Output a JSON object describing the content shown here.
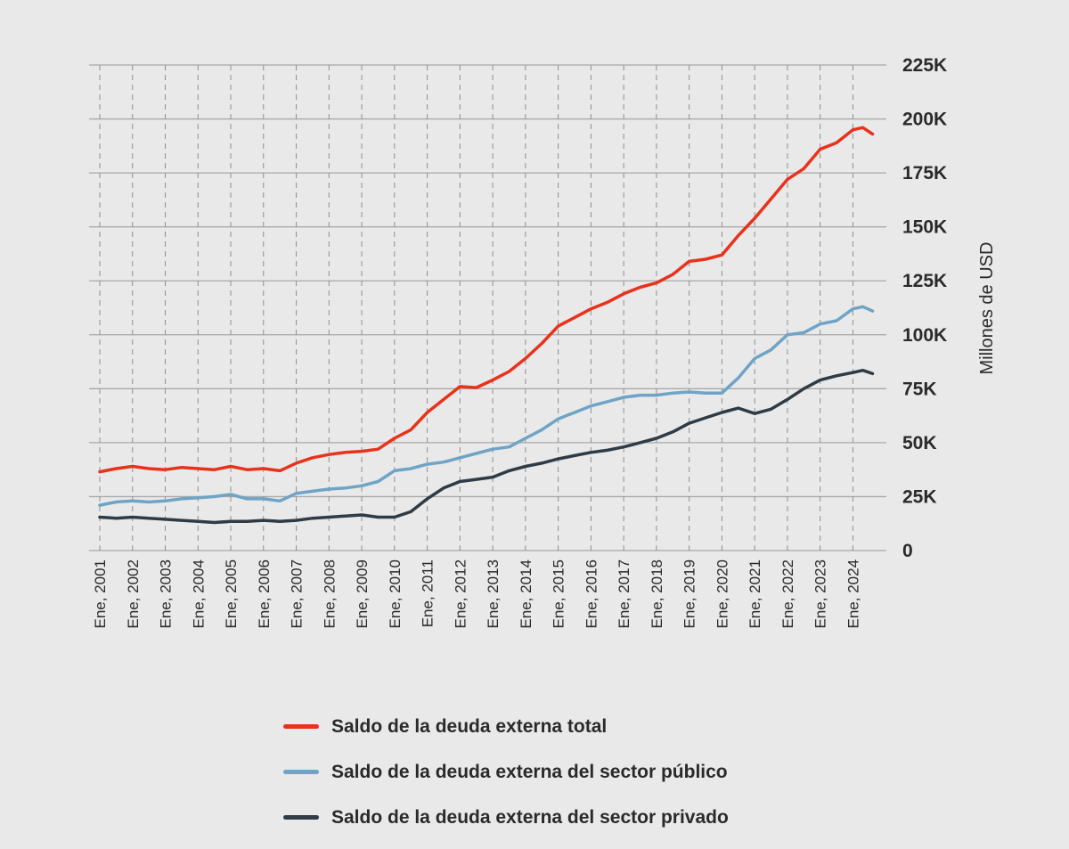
{
  "chart_data": {
    "type": "line",
    "ylabel": "Millones de USD",
    "xlabel": "",
    "ylim": [
      0,
      225000
    ],
    "y_ticks": [
      {
        "value": 0,
        "label": "0"
      },
      {
        "value": 25000,
        "label": "25K"
      },
      {
        "value": 50000,
        "label": "50K"
      },
      {
        "value": 75000,
        "label": "75K"
      },
      {
        "value": 100000,
        "label": "100K"
      },
      {
        "value": 125000,
        "label": "125K"
      },
      {
        "value": 150000,
        "label": "150K"
      },
      {
        "value": 175000,
        "label": "175K"
      },
      {
        "value": 200000,
        "label": "200K"
      },
      {
        "value": 225000,
        "label": "225K"
      }
    ],
    "x_range": [
      2001.0,
      2024.75
    ],
    "x_ticks": [
      {
        "value": 2001,
        "label": "Ene, 2001"
      },
      {
        "value": 2002,
        "label": "Ene, 2002"
      },
      {
        "value": 2003,
        "label": "Ene, 2003"
      },
      {
        "value": 2004,
        "label": "Ene, 2004"
      },
      {
        "value": 2005,
        "label": "Ene, 2005"
      },
      {
        "value": 2006,
        "label": "Ene, 2006"
      },
      {
        "value": 2007,
        "label": "Ene, 2007"
      },
      {
        "value": 2008,
        "label": "Ene, 2008"
      },
      {
        "value": 2009,
        "label": "Ene, 2009"
      },
      {
        "value": 2010,
        "label": "Ene, 2010"
      },
      {
        "value": 2011,
        "label": "Ene, 2011"
      },
      {
        "value": 2012,
        "label": "Ene, 2012"
      },
      {
        "value": 2013,
        "label": "Ene, 2013"
      },
      {
        "value": 2014,
        "label": "Ene, 2014"
      },
      {
        "value": 2015,
        "label": "Ene, 2015"
      },
      {
        "value": 2016,
        "label": "Ene, 2016"
      },
      {
        "value": 2017,
        "label": "Ene, 2017"
      },
      {
        "value": 2018,
        "label": "Ene, 2018"
      },
      {
        "value": 2019,
        "label": "Ene, 2019"
      },
      {
        "value": 2020,
        "label": "Ene, 2020"
      },
      {
        "value": 2021,
        "label": "Ene, 2021"
      },
      {
        "value": 2022,
        "label": "Ene, 2022"
      },
      {
        "value": 2023,
        "label": "Ene, 2023"
      },
      {
        "value": 2024,
        "label": "Ene, 2024"
      }
    ],
    "grid": {
      "horizontal": true,
      "vertical": "dashed"
    },
    "y_axis_position": "right",
    "legend_position": "bottom",
    "series": [
      {
        "name": "Saldo de la deuda externa total",
        "color": "#e8321b",
        "points": [
          [
            2001.0,
            36500
          ],
          [
            2001.5,
            38000
          ],
          [
            2002.0,
            39000
          ],
          [
            2002.5,
            38000
          ],
          [
            2003.0,
            37500
          ],
          [
            2003.5,
            38500
          ],
          [
            2004.0,
            38000
          ],
          [
            2004.5,
            37500
          ],
          [
            2005.0,
            39000
          ],
          [
            2005.5,
            37500
          ],
          [
            2006.0,
            38000
          ],
          [
            2006.5,
            37000
          ],
          [
            2007.0,
            40500
          ],
          [
            2007.5,
            43000
          ],
          [
            2008.0,
            44500
          ],
          [
            2008.5,
            45500
          ],
          [
            2009.0,
            46000
          ],
          [
            2009.5,
            47000
          ],
          [
            2010.0,
            52000
          ],
          [
            2010.5,
            56000
          ],
          [
            2011.0,
            64000
          ],
          [
            2011.5,
            70000
          ],
          [
            2012.0,
            76000
          ],
          [
            2012.5,
            75500
          ],
          [
            2013.0,
            79000
          ],
          [
            2013.5,
            83000
          ],
          [
            2014.0,
            89000
          ],
          [
            2014.5,
            96000
          ],
          [
            2015.0,
            104000
          ],
          [
            2015.5,
            108000
          ],
          [
            2016.0,
            112000
          ],
          [
            2016.5,
            115000
          ],
          [
            2017.0,
            119000
          ],
          [
            2017.5,
            122000
          ],
          [
            2018.0,
            124000
          ],
          [
            2018.5,
            128000
          ],
          [
            2019.0,
            134000
          ],
          [
            2019.5,
            135000
          ],
          [
            2020.0,
            137000
          ],
          [
            2020.5,
            146000
          ],
          [
            2021.0,
            154000
          ],
          [
            2021.5,
            163000
          ],
          [
            2022.0,
            172000
          ],
          [
            2022.5,
            177000
          ],
          [
            2023.0,
            186000
          ],
          [
            2023.5,
            189000
          ],
          [
            2024.0,
            195000
          ],
          [
            2024.3,
            196000
          ],
          [
            2024.6,
            193000
          ]
        ]
      },
      {
        "name": "Saldo de la deuda externa del sector público",
        "color": "#6fa4c6",
        "points": [
          [
            2001.0,
            21000
          ],
          [
            2001.5,
            22500
          ],
          [
            2002.0,
            23000
          ],
          [
            2002.5,
            22500
          ],
          [
            2003.0,
            23000
          ],
          [
            2003.5,
            24000
          ],
          [
            2004.0,
            24500
          ],
          [
            2004.5,
            25000
          ],
          [
            2005.0,
            26000
          ],
          [
            2005.5,
            24000
          ],
          [
            2006.0,
            24000
          ],
          [
            2006.5,
            23000
          ],
          [
            2007.0,
            26500
          ],
          [
            2007.5,
            27500
          ],
          [
            2008.0,
            28500
          ],
          [
            2008.5,
            29000
          ],
          [
            2009.0,
            30000
          ],
          [
            2009.5,
            32000
          ],
          [
            2010.0,
            37000
          ],
          [
            2010.5,
            38000
          ],
          [
            2011.0,
            40000
          ],
          [
            2011.5,
            41000
          ],
          [
            2012.0,
            43000
          ],
          [
            2012.5,
            45000
          ],
          [
            2013.0,
            47000
          ],
          [
            2013.5,
            48000
          ],
          [
            2014.0,
            52000
          ],
          [
            2014.5,
            56000
          ],
          [
            2015.0,
            61000
          ],
          [
            2015.5,
            64000
          ],
          [
            2016.0,
            67000
          ],
          [
            2016.5,
            69000
          ],
          [
            2017.0,
            71000
          ],
          [
            2017.5,
            72000
          ],
          [
            2018.0,
            72000
          ],
          [
            2018.5,
            73000
          ],
          [
            2019.0,
            73500
          ],
          [
            2019.5,
            73000
          ],
          [
            2020.0,
            73000
          ],
          [
            2020.5,
            80000
          ],
          [
            2021.0,
            89000
          ],
          [
            2021.5,
            93000
          ],
          [
            2022.0,
            100000
          ],
          [
            2022.5,
            101000
          ],
          [
            2023.0,
            105000
          ],
          [
            2023.5,
            106500
          ],
          [
            2024.0,
            112000
          ],
          [
            2024.3,
            113000
          ],
          [
            2024.6,
            111000
          ]
        ]
      },
      {
        "name": "Saldo de la deuda externa del sector privado",
        "color": "#2f3b45",
        "points": [
          [
            2001.0,
            15500
          ],
          [
            2001.5,
            15000
          ],
          [
            2002.0,
            15500
          ],
          [
            2002.5,
            15000
          ],
          [
            2003.0,
            14500
          ],
          [
            2003.5,
            14000
          ],
          [
            2004.0,
            13500
          ],
          [
            2004.5,
            13000
          ],
          [
            2005.0,
            13500
          ],
          [
            2005.5,
            13500
          ],
          [
            2006.0,
            14000
          ],
          [
            2006.5,
            13500
          ],
          [
            2007.0,
            14000
          ],
          [
            2007.5,
            15000
          ],
          [
            2008.0,
            15500
          ],
          [
            2008.5,
            16000
          ],
          [
            2009.0,
            16500
          ],
          [
            2009.5,
            15500
          ],
          [
            2010.0,
            15500
          ],
          [
            2010.5,
            18000
          ],
          [
            2011.0,
            24000
          ],
          [
            2011.5,
            29000
          ],
          [
            2012.0,
            32000
          ],
          [
            2012.5,
            33000
          ],
          [
            2013.0,
            34000
          ],
          [
            2013.5,
            37000
          ],
          [
            2014.0,
            39000
          ],
          [
            2014.5,
            40500
          ],
          [
            2015.0,
            42500
          ],
          [
            2015.5,
            44000
          ],
          [
            2016.0,
            45500
          ],
          [
            2016.5,
            46500
          ],
          [
            2017.0,
            48000
          ],
          [
            2017.5,
            50000
          ],
          [
            2018.0,
            52000
          ],
          [
            2018.5,
            55000
          ],
          [
            2019.0,
            59000
          ],
          [
            2019.5,
            61500
          ],
          [
            2020.0,
            64000
          ],
          [
            2020.5,
            66000
          ],
          [
            2021.0,
            63500
          ],
          [
            2021.5,
            65500
          ],
          [
            2022.0,
            70000
          ],
          [
            2022.5,
            75000
          ],
          [
            2023.0,
            79000
          ],
          [
            2023.5,
            81000
          ],
          [
            2024.0,
            82500
          ],
          [
            2024.3,
            83500
          ],
          [
            2024.6,
            82000
          ]
        ]
      }
    ]
  }
}
